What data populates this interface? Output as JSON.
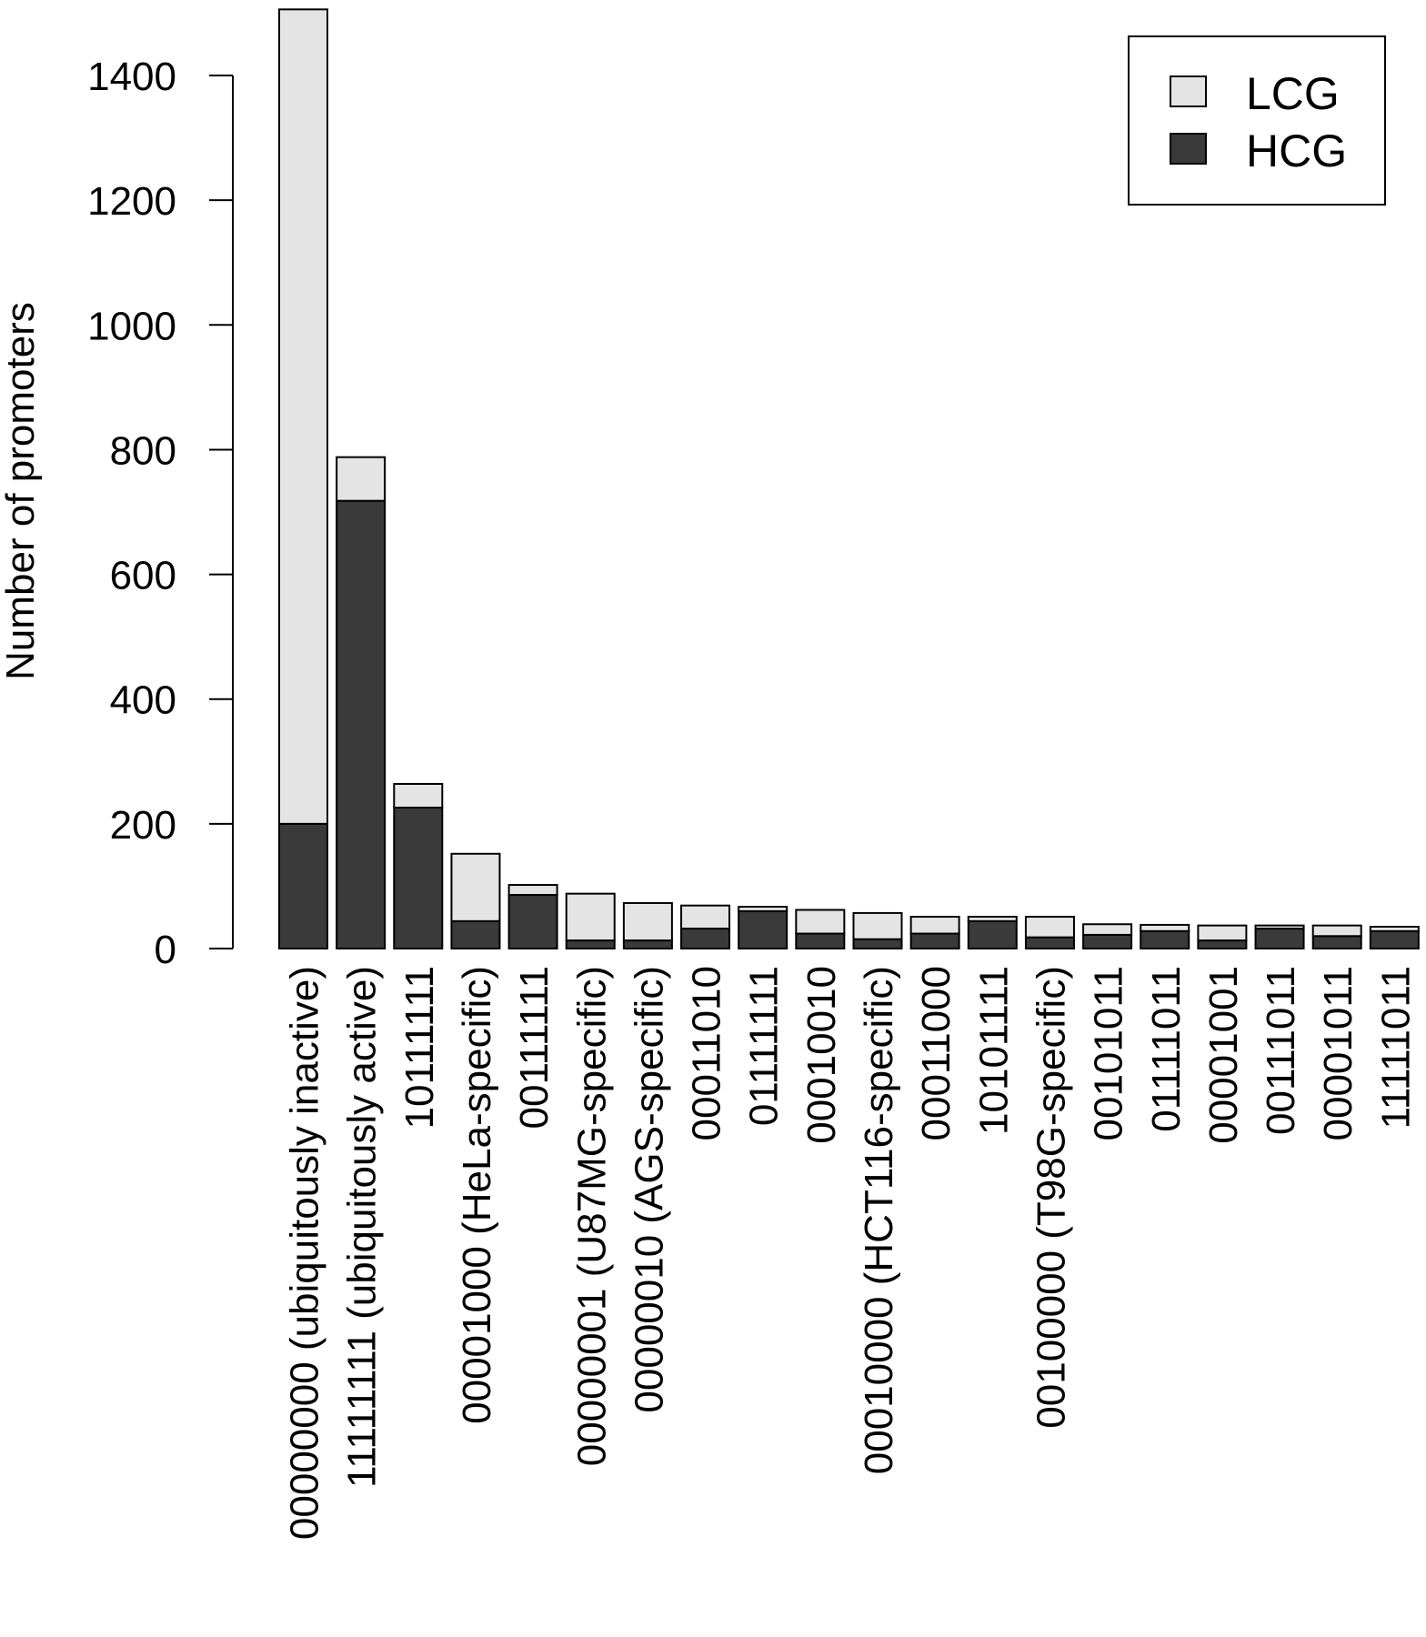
{
  "chart_data": {
    "type": "bar",
    "stacked": true,
    "title": "",
    "xlabel": "",
    "ylabel": "Number of promoters",
    "ylim": [
      0,
      1500
    ],
    "yticks": [
      0,
      200,
      400,
      600,
      800,
      1000,
      1200,
      1400
    ],
    "grid": false,
    "legend_position": "top-right",
    "categories": [
      "00000000 (ubiquitously inactive)",
      "11111111 (ubiquitously active)",
      "10111111",
      "00001000 (HeLa-specific)",
      "00111111",
      "00000001 (U87MG-specific)",
      "00000010 (AGS-specific)",
      "00011010",
      "01111111",
      "00010010",
      "00010000 (HCT116-specific)",
      "00011000",
      "10101111",
      "00100000 (T98G-specific)",
      "00101011",
      "01111011",
      "00001001",
      "00111011",
      "00001011",
      "11111011"
    ],
    "series": [
      {
        "name": "HCG",
        "color": "#3a3a3a",
        "values": [
          200,
          718,
          226,
          44,
          86,
          13,
          13,
          32,
          60,
          24,
          15,
          24,
          44,
          18,
          22,
          28,
          13,
          32,
          20,
          28
        ]
      },
      {
        "name": "LCG",
        "color": "#e4e4e4",
        "values": [
          1306,
          70,
          38,
          108,
          16,
          75,
          60,
          37,
          7,
          38,
          42,
          27,
          7,
          33,
          17,
          10,
          24,
          5,
          17,
          7
        ]
      }
    ]
  }
}
